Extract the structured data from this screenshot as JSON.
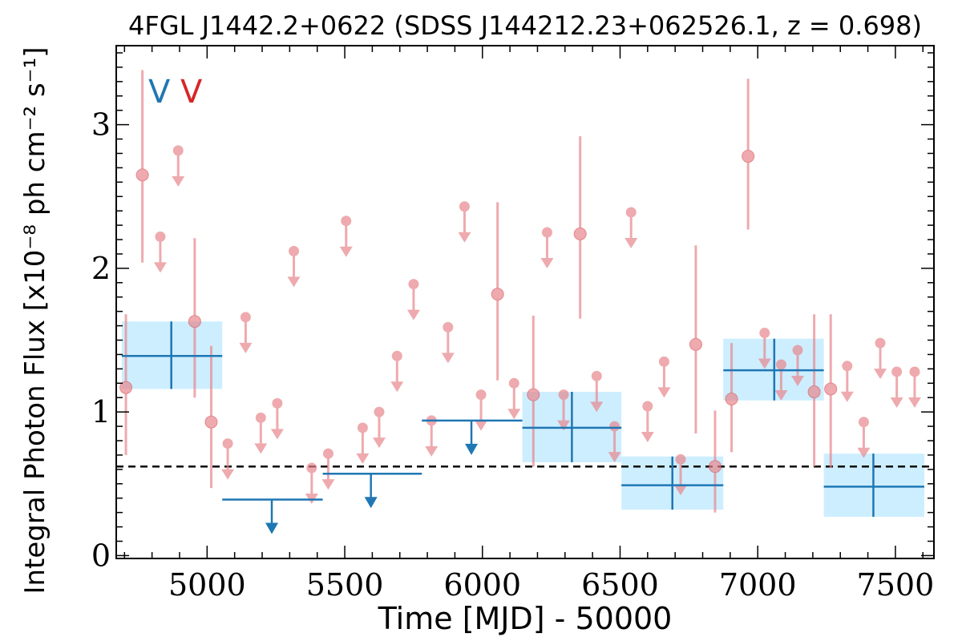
{
  "chart_data": {
    "type": "scatter",
    "title": "4FGL J1442.2+0622 (SDSS J144212.23+062526.1, z = 0.698)",
    "xlabel": "Time [MJD] - 50000",
    "ylabel": "Integral Photon Flux [x10⁻⁸ ph cm⁻² s⁻¹]",
    "xlim": [
      4670,
      7640
    ],
    "ylim": [
      -0.02,
      3.55
    ],
    "x_ticks": [
      5000,
      5500,
      6000,
      6500,
      7000,
      7500
    ],
    "y_ticks": [
      0,
      1,
      2,
      3
    ],
    "grid": false,
    "legend_markers": [
      {
        "label": "V",
        "color": "#1f77b4"
      },
      {
        "label": "V",
        "color": "#d62728"
      }
    ],
    "reference_line": {
      "y": 0.62,
      "style": "dashed",
      "color": "#000000"
    },
    "series": [
      {
        "name": "",
        "color": "#e8878c",
        "detections": [
          {
            "x": 4705,
            "y": 1.17,
            "lo": 0.7,
            "hi": 1.68
          },
          {
            "x": 4765,
            "y": 2.65,
            "lo": 2.04,
            "hi": 3.38
          },
          {
            "x": 4955,
            "y": 1.63,
            "lo": 1.1,
            "hi": 2.21
          },
          {
            "x": 5015,
            "y": 0.93,
            "lo": 0.47,
            "hi": 1.46
          },
          {
            "x": 6055,
            "y": 1.82,
            "lo": 1.22,
            "hi": 2.46
          },
          {
            "x": 6185,
            "y": 1.12,
            "lo": 0.62,
            "hi": 1.67
          },
          {
            "x": 6355,
            "y": 2.24,
            "lo": 1.65,
            "hi": 2.92
          },
          {
            "x": 6775,
            "y": 1.47,
            "lo": 0.85,
            "hi": 2.16
          },
          {
            "x": 6845,
            "y": 0.62,
            "lo": 0.3,
            "hi": 1.01
          },
          {
            "x": 6965,
            "y": 2.78,
            "lo": 2.27,
            "hi": 3.32
          },
          {
            "x": 6905,
            "y": 1.09,
            "lo": 0.72,
            "hi": 1.48
          },
          {
            "x": 7205,
            "y": 1.14,
            "lo": 0.62,
            "hi": 1.68
          },
          {
            "x": 7265,
            "y": 1.16,
            "lo": 0.61,
            "hi": 1.68
          }
        ],
        "upper_limits": [
          {
            "x": 4830,
            "y": 2.22
          },
          {
            "x": 4895,
            "y": 2.82
          },
          {
            "x": 5075,
            "y": 0.78
          },
          {
            "x": 5140,
            "y": 1.66
          },
          {
            "x": 5195,
            "y": 0.96
          },
          {
            "x": 5255,
            "y": 1.06
          },
          {
            "x": 5315,
            "y": 2.12
          },
          {
            "x": 5380,
            "y": 0.61
          },
          {
            "x": 5440,
            "y": 0.71
          },
          {
            "x": 5505,
            "y": 2.33
          },
          {
            "x": 5565,
            "y": 0.89
          },
          {
            "x": 5625,
            "y": 1.0
          },
          {
            "x": 5690,
            "y": 1.39
          },
          {
            "x": 5750,
            "y": 1.89
          },
          {
            "x": 5815,
            "y": 0.94
          },
          {
            "x": 5875,
            "y": 1.59
          },
          {
            "x": 5935,
            "y": 2.43
          },
          {
            "x": 5995,
            "y": 1.12
          },
          {
            "x": 6115,
            "y": 1.2
          },
          {
            "x": 6235,
            "y": 2.25
          },
          {
            "x": 6295,
            "y": 1.12
          },
          {
            "x": 6415,
            "y": 1.25
          },
          {
            "x": 6480,
            "y": 0.9
          },
          {
            "x": 6540,
            "y": 2.39
          },
          {
            "x": 6600,
            "y": 1.04
          },
          {
            "x": 6660,
            "y": 1.35
          },
          {
            "x": 6720,
            "y": 0.67
          },
          {
            "x": 7025,
            "y": 1.55
          },
          {
            "x": 7085,
            "y": 1.33
          },
          {
            "x": 7145,
            "y": 1.43
          },
          {
            "x": 7325,
            "y": 1.32
          },
          {
            "x": 7385,
            "y": 0.93
          },
          {
            "x": 7445,
            "y": 1.48
          },
          {
            "x": 7505,
            "y": 1.28
          },
          {
            "x": 7570,
            "y": 1.28
          }
        ]
      },
      {
        "name": "",
        "color": "#1f77b4",
        "detections": [
          {
            "x_lo": 4690,
            "x_hi": 5055,
            "x": 4870,
            "y": 1.39,
            "lo": 1.16,
            "hi": 1.63
          },
          {
            "x_lo": 6145,
            "x_hi": 6505,
            "x": 6325,
            "y": 0.89,
            "lo": 0.65,
            "hi": 1.14
          },
          {
            "x_lo": 6505,
            "x_hi": 6875,
            "x": 6690,
            "y": 0.49,
            "lo": 0.32,
            "hi": 0.69
          },
          {
            "x_lo": 6875,
            "x_hi": 7240,
            "x": 7060,
            "y": 1.29,
            "lo": 1.08,
            "hi": 1.51
          },
          {
            "x_lo": 7240,
            "x_hi": 7605,
            "x": 7420,
            "y": 0.48,
            "lo": 0.27,
            "hi": 0.71
          }
        ],
        "upper_limits": [
          {
            "x_lo": 5055,
            "x_hi": 5420,
            "x": 5235,
            "y": 0.39
          },
          {
            "x_lo": 5420,
            "x_hi": 5780,
            "x": 5595,
            "y": 0.57
          },
          {
            "x_lo": 5780,
            "x_hi": 6145,
            "x": 5960,
            "y": 0.94
          }
        ]
      }
    ]
  }
}
